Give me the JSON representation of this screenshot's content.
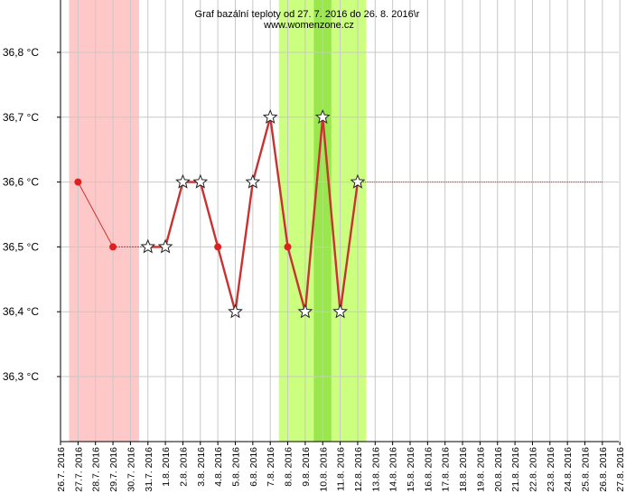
{
  "chart_data": {
    "type": "line",
    "title": "Graf bazální teploty od 27. 7. 2016 do 26. 8. 2016\\r",
    "subtitle": "www.womenzone.cz",
    "ylim": [
      36.2,
      36.9
    ],
    "y_ticks": [
      "36,3 °C",
      "36,4 °C",
      "36,5 °C",
      "36,6 °C",
      "36,7 °C",
      "36,8 °C"
    ],
    "y_tick_values": [
      36.3,
      36.4,
      36.5,
      36.6,
      36.7,
      36.8
    ],
    "categories": [
      "26.7. 2016",
      "27.7. 2016",
      "28.7. 2016",
      "29.7. 2016",
      "30.7. 2016",
      "31.7. 2016",
      "1.8. 2016",
      "2.8. 2016",
      "3.8. 2016",
      "4.8. 2016",
      "5.8. 2016",
      "6.8. 2016",
      "7.8. 2016",
      "8.8. 2016",
      "9.8. 2016",
      "10.8. 2016",
      "11.8. 2016",
      "12.8. 2016",
      "13.8. 2016",
      "14.8. 2016",
      "15.8. 2016",
      "16.8. 2016",
      "17.8. 2016",
      "18.8. 2016",
      "19.8. 2016",
      "20.8. 2016",
      "21.8. 2016",
      "22.8. 2016",
      "23.8. 2016",
      "24.8. 2016",
      "25.8. 2016",
      "26.8. 2016",
      "27.8. 2016"
    ],
    "grid": true,
    "bands": [
      {
        "kind": "menstruation",
        "from": "26.7. 2016",
        "to": "30.7. 2016",
        "color": "#ffc8c8"
      },
      {
        "kind": "fertile",
        "from": "7.8. 2016",
        "to": "12.8. 2016",
        "color": "#ccff80"
      },
      {
        "kind": "ovulation",
        "from": "9.8. 2016",
        "to": "10.8. 2016",
        "color": "#99e64d"
      }
    ],
    "series": [
      {
        "points": [
          {
            "x": "27.7. 2016",
            "y": 36.6,
            "marker": "dot"
          },
          {
            "x": "29.7. 2016",
            "y": 36.5,
            "marker": "dot"
          },
          {
            "x": "31.7. 2016",
            "y": 36.5,
            "marker": "star"
          },
          {
            "x": "1.8. 2016",
            "y": 36.5,
            "marker": "star"
          },
          {
            "x": "2.8. 2016",
            "y": 36.6,
            "marker": "star"
          },
          {
            "x": "3.8. 2016",
            "y": 36.6,
            "marker": "star"
          },
          {
            "x": "4.8. 2016",
            "y": 36.5,
            "marker": "dot"
          },
          {
            "x": "5.8. 2016",
            "y": 36.4,
            "marker": "star"
          },
          {
            "x": "6.8. 2016",
            "y": 36.6,
            "marker": "star"
          },
          {
            "x": "7.8. 2016",
            "y": 36.7,
            "marker": "star"
          },
          {
            "x": "8.8. 2016",
            "y": 36.5,
            "marker": "dot"
          },
          {
            "x": "9.8. 2016",
            "y": 36.4,
            "marker": "star"
          },
          {
            "x": "10.8. 2016",
            "y": 36.7,
            "marker": "star"
          },
          {
            "x": "11.8. 2016",
            "y": 36.4,
            "marker": "star"
          },
          {
            "x": "12.8. 2016",
            "y": 36.6,
            "marker": "star"
          }
        ],
        "color": "#c83232"
      }
    ],
    "coverline": {
      "y": 36.6,
      "from": "12.8. 2016",
      "to": "26.8. 2016",
      "color": "#c83232"
    }
  }
}
